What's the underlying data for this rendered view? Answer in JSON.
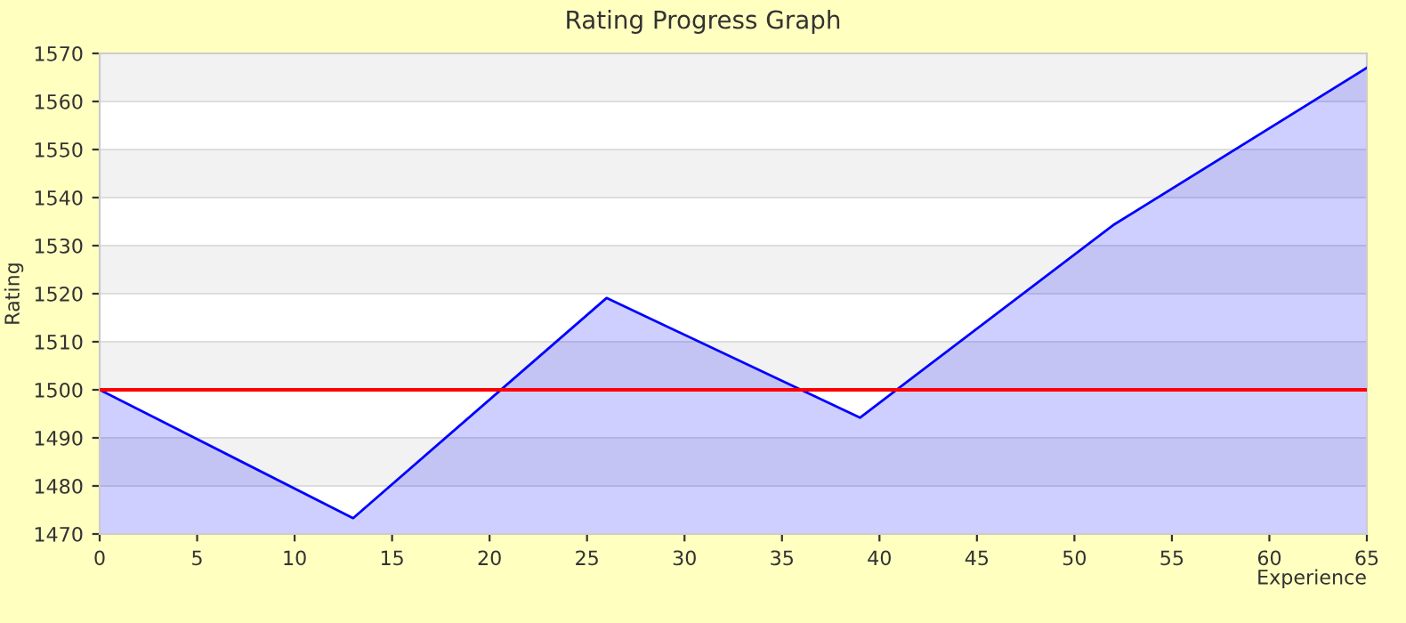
{
  "chart_data": {
    "type": "area",
    "title": "Rating Progress Graph",
    "xlabel": "Experience",
    "ylabel": "Rating",
    "x": [
      0,
      13,
      26,
      39,
      52,
      65
    ],
    "series": [
      {
        "color": "#0000ff",
        "values": [
          1500,
          1473.3,
          1519.1,
          1494.2,
          1534.3,
          1567.0
        ]
      }
    ],
    "xlim": [
      0,
      65
    ],
    "xticks": [
      0,
      5,
      10,
      15,
      20,
      25,
      30,
      35,
      40,
      45,
      50,
      55,
      60,
      65
    ],
    "ylim": [
      1470,
      1570
    ],
    "yticks": [
      1470,
      1480,
      1490,
      1500,
      1510,
      1520,
      1530,
      1540,
      1550,
      1560,
      1570
    ],
    "ref_lines": [
      {
        "axis": "y",
        "value": 1500,
        "color": "#ff0000"
      }
    ],
    "grid": "y",
    "legend": false
  }
}
